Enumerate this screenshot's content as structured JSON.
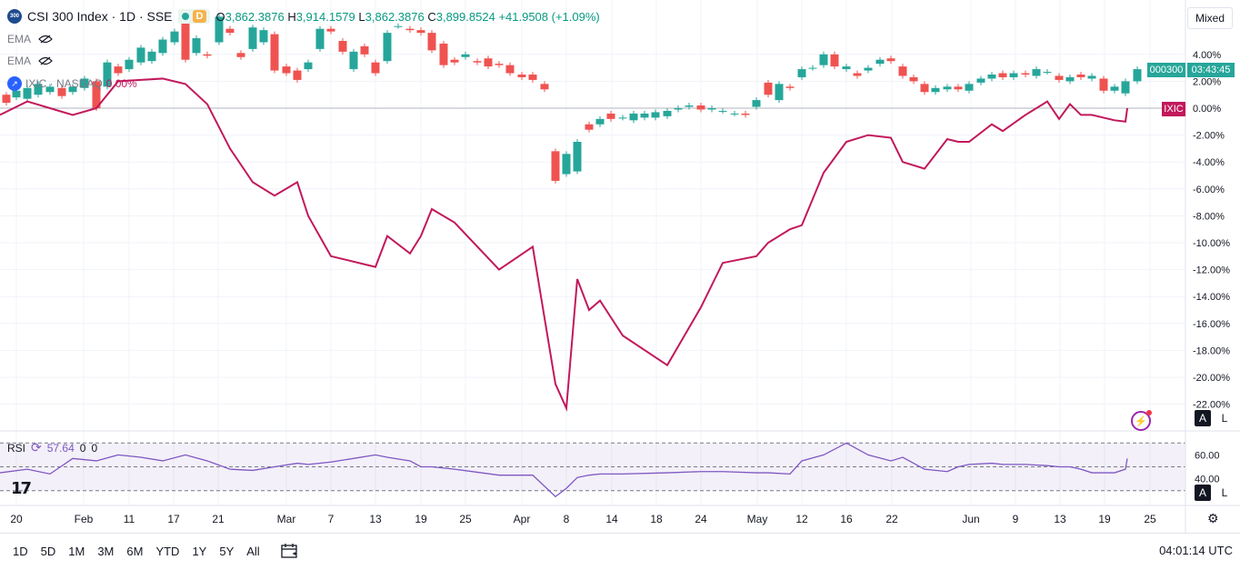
{
  "header": {
    "symbol_badge": "300",
    "title": "CSI 300 Index · 1D · SSE",
    "status_badge": "D",
    "ohlc": {
      "o_label": "O",
      "o": "3,862.3876",
      "h_label": "H",
      "h": "3,914.1579",
      "l_label": "L",
      "l": "3,862.3876",
      "c_label": "C",
      "c": "3,899.8524",
      "change": "+41.9508 (+1.09%)"
    }
  },
  "indicators": {
    "ema1": "EMA",
    "ema2": "EMA",
    "compare_label": "IXIC · NASDAQ",
    "compare_value": "0.00%",
    "rsi_label": "RSI",
    "rsi_value": "57.64",
    "rsi_p1": "0",
    "rsi_p2": "0"
  },
  "scale_mode": "Mixed",
  "price_axis": {
    "labels": [
      "4.00%",
      "2.00%",
      "0.00%",
      "-2.00%",
      "-4.00%",
      "-6.00%",
      "-8.00%",
      "-10.00%",
      "-12.00%",
      "-14.00%",
      "-16.00%",
      "-18.00%",
      "-20.00%",
      "-22.00%"
    ],
    "symbol_tag": "000300",
    "countdown_tag": "03:43:45",
    "compare_tag": "IXIC"
  },
  "rsi_axis": {
    "labels": [
      "60.00",
      "40.00"
    ]
  },
  "auto_log": {
    "a": "A",
    "l": "L"
  },
  "time_axis": {
    "labels": [
      "20",
      "Feb",
      "11",
      "17",
      "21",
      "Mar",
      "7",
      "13",
      "19",
      "25",
      "Apr",
      "8",
      "14",
      "18",
      "24",
      "May",
      "12",
      "16",
      "22",
      "Jun",
      "9",
      "13",
      "19",
      "25"
    ]
  },
  "ranges": [
    "1D",
    "5D",
    "1M",
    "3M",
    "6M",
    "YTD",
    "1Y",
    "5Y",
    "All"
  ],
  "clock": "04:01:14 UTC",
  "logo_text": "17",
  "colors": {
    "up": "#26a69a",
    "down": "#ef5350",
    "compare": "#c2185b",
    "rsi": "#7e57c2"
  },
  "chart_data": {
    "type": "line",
    "x": [
      "Jan 20",
      "Jan 23",
      "Jan 27",
      "Feb 3",
      "Feb 7",
      "Feb 11",
      "Feb 14",
      "Feb 17",
      "Feb 19",
      "Feb 21",
      "Feb 25",
      "Feb 28",
      "Mar 3",
      "Mar 5",
      "Mar 7",
      "Mar 10",
      "Mar 13",
      "Mar 17",
      "Mar 19",
      "Mar 21",
      "Mar 25",
      "Mar 27",
      "Mar 31",
      "Apr 3",
      "Apr 4",
      "Apr 7",
      "Apr 8",
      "Apr 9",
      "Apr 10",
      "Apr 11",
      "Apr 14",
      "Apr 16",
      "Apr 18",
      "Apr 21",
      "Apr 23",
      "Apr 25",
      "Apr 28",
      "Apr 30",
      "May 2",
      "May 6",
      "May 8",
      "May 12",
      "May 14",
      "May 16",
      "May 19",
      "May 21",
      "May 23",
      "May 28",
      "May 30",
      "Jun 3",
      "Jun 5",
      "Jun 9",
      "Jun 11",
      "Jun 13",
      "Jun 17",
      "Jun 19",
      "Jun 23"
    ],
    "series": [
      {
        "name": "IXIC",
        "values": [
          -0.5,
          0.5,
          0.0,
          -0.5,
          0.0,
          2.0,
          2.1,
          2.2,
          1.8,
          0.3,
          -3.0,
          -5.5,
          -6.5,
          -5.5,
          -8.0,
          -11.0,
          -11.8,
          -9.5,
          -10.8,
          -9.5,
          -7.5,
          -8.5,
          -12.0,
          -10.3,
          -20.5,
          -22.3,
          -12.7,
          -15.0,
          -14.3,
          -16.9,
          -19.1,
          -14.8,
          -11.5,
          -11.0,
          -10.0,
          -9.0,
          -8.7,
          -4.8,
          -2.5,
          -2.0,
          -2.2,
          -4.0,
          -4.5,
          -2.3,
          -2.5,
          -2.5,
          -1.2,
          -1.7,
          -0.5,
          0.5,
          -0.8,
          0.3,
          -0.5,
          -0.5,
          -0.9,
          -1.0,
          0.0
        ]
      },
      {
        "name": "RSI",
        "values": [
          45,
          48,
          44,
          57,
          55,
          60,
          58,
          55,
          60,
          55,
          48,
          47,
          50,
          53,
          52,
          54,
          60,
          58,
          55,
          50,
          50,
          48,
          43,
          43,
          25,
          32,
          41,
          43,
          44,
          44,
          45,
          46,
          46,
          45,
          45,
          44,
          55,
          60,
          70,
          60,
          55,
          58,
          48,
          46,
          50,
          52,
          53,
          52,
          52,
          51,
          50,
          50,
          48,
          45,
          45,
          48,
          57
        ]
      }
    ],
    "ylabel": "",
    "ylim": [
      -22,
      5
    ]
  }
}
